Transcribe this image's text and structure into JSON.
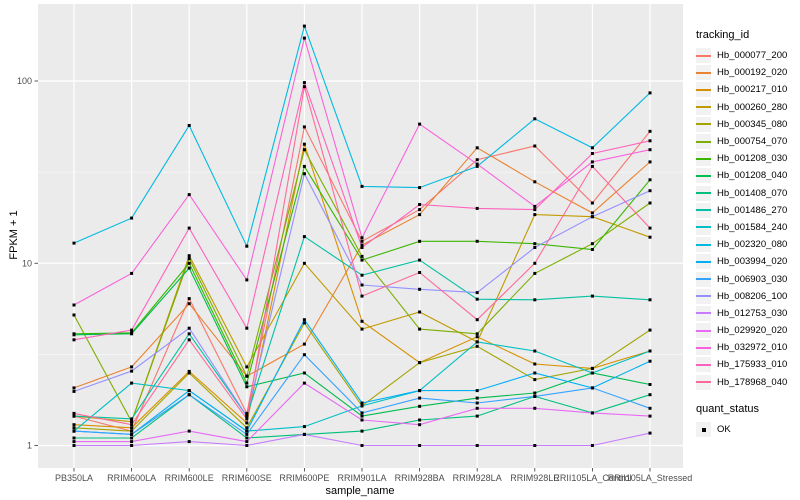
{
  "chart_data": {
    "type": "line",
    "title": "",
    "xlabel": "sample_name",
    "ylabel": "FPKM + 1",
    "x_type": "categorical",
    "y_scale": "log10",
    "y_ticks": [
      1,
      10,
      100
    ],
    "y_minor_breaks": [
      3.162,
      31.62
    ],
    "ylim": [
      0.75,
      265
    ],
    "grid": true,
    "legend_position": "right",
    "point_marker": "small black square (quant_status = OK)",
    "categories": [
      "PB350LA",
      "RRIM600LA",
      "RRIM600LE",
      "RRIM600SE",
      "RRIM600PE",
      "RRIM901LA",
      "RRIM928BA",
      "RRIM928LA",
      "RRIM928LE",
      "RRII105LA_Control",
      "RRII105LA_Stressed"
    ],
    "series": [
      {
        "name": "Hb_000077_200",
        "color": "#F8766D",
        "values": [
          1.45,
          1.2,
          6.4,
          1.5,
          56,
          13.2,
          19.7,
          37,
          44,
          21.4,
          53
        ]
      },
      {
        "name": "Hb_000192_020",
        "color": "#EA8331",
        "values": [
          2.07,
          2.7,
          6.0,
          2.4,
          3.6,
          12.6,
          18.5,
          43,
          28,
          18.9,
          36
        ]
      },
      {
        "name": "Hb_000217_010",
        "color": "#D89000",
        "values": [
          1.3,
          1.25,
          2.55,
          1.33,
          45,
          4.8,
          2.85,
          3.95,
          2.8,
          2.65,
          3.3
        ]
      },
      {
        "name": "Hb_000260_280",
        "color": "#C09B00",
        "values": [
          1.45,
          1.35,
          11.0,
          2.7,
          10.0,
          4.35,
          5.4,
          3.7,
          18.5,
          18.0,
          13.9
        ]
      },
      {
        "name": "Hb_000345_080",
        "color": "#A3A500",
        "values": [
          1.25,
          1.2,
          2.5,
          1.25,
          4.7,
          1.65,
          2.85,
          3.5,
          2.3,
          2.65,
          4.3
        ]
      },
      {
        "name": "Hb_000754_070",
        "color": "#7CAE00",
        "values": [
          5.2,
          1.35,
          10.6,
          2.4,
          42,
          10.9,
          4.35,
          4.1,
          8.8,
          12.8,
          21.4
        ]
      },
      {
        "name": "Hb_001208_030",
        "color": "#39B600",
        "values": [
          4.1,
          4.15,
          10.0,
          2.2,
          34,
          10.4,
          13.2,
          13.2,
          12.8,
          11.9,
          28.7
        ]
      },
      {
        "name": "Hb_001208_040",
        "color": "#00BB4E",
        "values": [
          4.05,
          4.1,
          9.4,
          2.1,
          2.5,
          1.45,
          1.64,
          1.82,
          1.94,
          2.5,
          2.16
        ]
      },
      {
        "name": "Hb_001408_070",
        "color": "#00BF7D",
        "values": [
          1.1,
          1.1,
          1.9,
          1.1,
          1.15,
          1.2,
          1.38,
          1.45,
          1.86,
          1.51,
          1.9
        ]
      },
      {
        "name": "Hb_001486_270",
        "color": "#00C1A3",
        "values": [
          1.45,
          1.4,
          4.1,
          1.45,
          14.0,
          8.6,
          10.4,
          6.35,
          6.3,
          6.6,
          6.3
        ]
      },
      {
        "name": "Hb_001584_240",
        "color": "#00BFC4",
        "values": [
          1.2,
          2.2,
          2.0,
          1.2,
          1.27,
          1.65,
          2.0,
          3.7,
          3.3,
          2.5,
          3.3
        ]
      },
      {
        "name": "Hb_002320_080",
        "color": "#00BAE0",
        "values": [
          12.9,
          17.7,
          57,
          12.4,
          200,
          26.4,
          26,
          34,
          62,
          43,
          86
        ]
      },
      {
        "name": "Hb_003994_020",
        "color": "#00B0F6",
        "values": [
          1.2,
          1.15,
          2.0,
          1.2,
          4.9,
          1.71,
          2.0,
          2.0,
          2.5,
          2.07,
          2.9
        ]
      },
      {
        "name": "Hb_006903_030",
        "color": "#35A2FF",
        "values": [
          1.2,
          1.15,
          1.9,
          1.15,
          3.15,
          1.51,
          1.82,
          1.71,
          1.86,
          2.07,
          1.6
        ]
      },
      {
        "name": "Hb_008206_100",
        "color": "#9590FF",
        "values": [
          1.98,
          2.56,
          4.4,
          1.45,
          31,
          7.6,
          7.2,
          6.9,
          12.2,
          18.0,
          25
        ]
      },
      {
        "name": "Hb_012753_030",
        "color": "#C77CFF",
        "values": [
          1.0,
          1.0,
          1.05,
          1.0,
          1.15,
          1.0,
          1.0,
          1.0,
          1.0,
          1.0,
          1.17
        ]
      },
      {
        "name": "Hb_029920_020",
        "color": "#E76BF3",
        "values": [
          1.05,
          1.05,
          1.2,
          1.05,
          2.2,
          1.38,
          1.3,
          1.6,
          1.6,
          1.51,
          1.45
        ]
      },
      {
        "name": "Hb_032972_010",
        "color": "#FA62DB",
        "values": [
          5.9,
          8.8,
          23.8,
          8.1,
          172,
          13.8,
          58,
          35,
          20.5,
          36,
          42
        ]
      },
      {
        "name": "Hb_175933_010",
        "color": "#FF62BC",
        "values": [
          3.8,
          4.3,
          15.6,
          4.4,
          98,
          12.2,
          21,
          20,
          19.7,
          40,
          47
        ]
      },
      {
        "name": "Hb_178968_040",
        "color": "#FF6A98",
        "values": [
          1.5,
          1.3,
          3.8,
          1.4,
          93,
          6.6,
          8.9,
          4.9,
          10.0,
          34,
          15.6
        ]
      }
    ],
    "legends": {
      "tracking": {
        "title": "tracking_id"
      },
      "quant": {
        "title": "quant_status",
        "items": [
          {
            "label": "OK",
            "marker": "black-square"
          }
        ]
      }
    },
    "style": {
      "panel_bg": "#EBEBEB",
      "grid_color": "#FFFFFF",
      "tick_text_color": "#4D4D4D",
      "tick_mark_color": "#333333",
      "title_text_color": "#000000",
      "point_color": "#000000",
      "legend_key_bg": "#F2F2F2"
    }
  }
}
